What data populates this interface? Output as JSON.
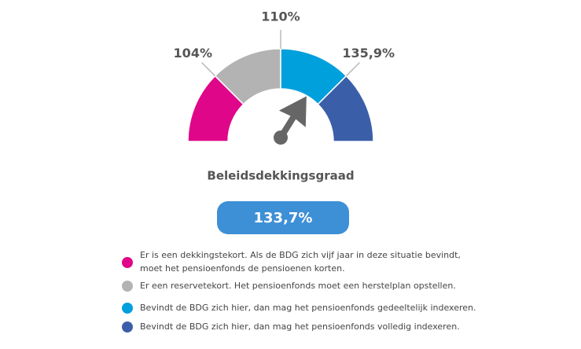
{
  "gauge": {
    "thresholds": [
      "104%",
      "110%",
      "135,9%"
    ],
    "title": "Beleidsdekkingsgraad",
    "value": "133,7%"
  },
  "legend": [
    {
      "color": "#e0068a",
      "lines": [
        "Er is een dekkingstekort. Als de BDG zich vijf jaar in deze situatie bevindt,",
        "moet het pensioenfonds de pensioenen korten."
      ]
    },
    {
      "color": "#b3b3b3",
      "lines": [
        "Er een reservetekort. Het pensioenfonds moet een herstelplan opstellen."
      ]
    },
    {
      "color": "#00a0dc",
      "lines": [
        "Bevindt de BDG zich hier, dan mag het pensioenfonds gedeeltelijk indexeren."
      ]
    },
    {
      "color": "#3a5fa8",
      "lines": [
        "Bevindt de BDG zich hier, dan mag het pensioenfonds volledig indexeren."
      ]
    }
  ]
}
